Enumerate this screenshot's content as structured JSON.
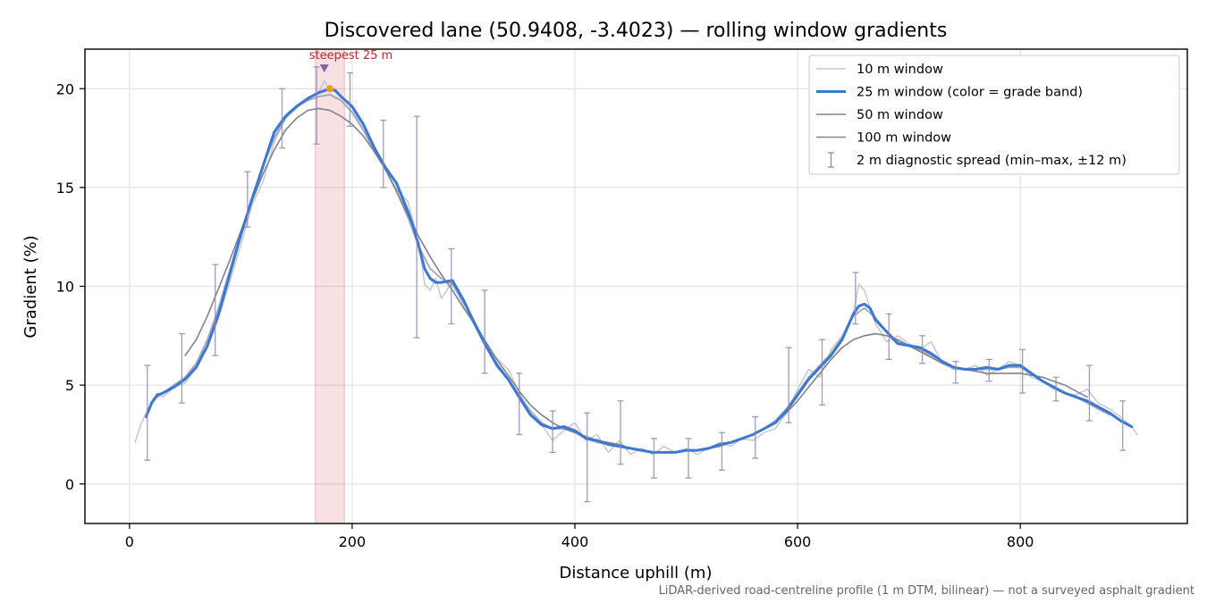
{
  "chart_data": {
    "type": "line",
    "title": "Discovered lane (50.9408, -3.4023) — rolling window gradients",
    "xlabel": "Distance uphill (m)",
    "ylabel": "Gradient (%)",
    "xlim": [
      -40,
      950
    ],
    "ylim": [
      -2,
      22
    ],
    "xticks": [
      0,
      200,
      400,
      600,
      800
    ],
    "yticks": [
      0,
      5,
      10,
      15,
      20
    ],
    "grid": true,
    "legend_position": "top-right",
    "footnote": "LiDAR-derived road-centreline profile (1 m DTM, bilinear) — not a surveyed asphalt gradient",
    "annotation": {
      "text": "steepest 25 m",
      "x": 175,
      "y": 21,
      "highlight_x_range": [
        167,
        193
      ],
      "peak_point": [
        180,
        20.0
      ]
    },
    "series": [
      {
        "name": "10 m window",
        "color": "#c4c8d0",
        "x": [
          5,
          10,
          15,
          20,
          25,
          30,
          40,
          50,
          60,
          70,
          80,
          90,
          100,
          110,
          120,
          130,
          140,
          150,
          160,
          170,
          175,
          180,
          185,
          190,
          200,
          210,
          220,
          230,
          240,
          250,
          260,
          265,
          270,
          275,
          280,
          290,
          300,
          310,
          320,
          340,
          360,
          370,
          380,
          390,
          400,
          410,
          420,
          430,
          440,
          450,
          460,
          470,
          480,
          490,
          500,
          510,
          520,
          530,
          540,
          550,
          560,
          570,
          580,
          590,
          600,
          610,
          620,
          630,
          640,
          650,
          655,
          660,
          665,
          670,
          680,
          690,
          700,
          710,
          720,
          730,
          740,
          750,
          760,
          770,
          780,
          790,
          800,
          810,
          820,
          830,
          840,
          850,
          860,
          870,
          880,
          890,
          900,
          905
        ],
        "values": [
          2.1,
          3.0,
          3.6,
          4.2,
          4.6,
          4.4,
          4.9,
          5.1,
          5.9,
          6.9,
          8.4,
          10.2,
          12.1,
          14.1,
          15.3,
          17.3,
          18.5,
          19.0,
          19.5,
          19.8,
          20.4,
          19.9,
          20.0,
          19.6,
          19.0,
          17.9,
          16.8,
          15.9,
          14.9,
          14.3,
          12.2,
          10.1,
          9.8,
          10.4,
          9.4,
          10.2,
          9.0,
          8.0,
          6.9,
          5.8,
          3.5,
          3.0,
          2.2,
          2.7,
          3.1,
          2.2,
          2.5,
          1.6,
          2.2,
          1.5,
          1.8,
          1.5,
          1.9,
          1.6,
          1.8,
          1.5,
          1.8,
          2.1,
          1.9,
          2.3,
          2.2,
          2.6,
          2.8,
          3.6,
          4.8,
          5.8,
          5.4,
          6.8,
          7.5,
          8.6,
          10.1,
          9.8,
          8.9,
          8.1,
          7.2,
          7.5,
          7.1,
          6.8,
          7.2,
          6.1,
          5.8,
          5.8,
          6.0,
          5.5,
          5.8,
          6.2,
          6.0,
          5.4,
          5.2,
          4.8,
          4.6,
          4.5,
          4.8,
          4.1,
          3.8,
          3.4,
          2.9,
          2.5
        ]
      },
      {
        "name": "25 m window (color = grade band)",
        "color": "#3a78d4",
        "x": [
          15,
          20,
          25,
          30,
          40,
          50,
          60,
          70,
          80,
          90,
          100,
          110,
          120,
          130,
          140,
          150,
          160,
          170,
          175,
          180,
          185,
          190,
          200,
          210,
          220,
          230,
          240,
          250,
          255,
          260,
          265,
          270,
          275,
          280,
          290,
          300,
          310,
          320,
          330,
          340,
          350,
          360,
          370,
          380,
          390,
          400,
          410,
          420,
          430,
          440,
          450,
          460,
          470,
          480,
          490,
          500,
          510,
          520,
          530,
          540,
          550,
          560,
          570,
          580,
          590,
          600,
          610,
          620,
          630,
          640,
          650,
          655,
          660,
          665,
          670,
          680,
          690,
          700,
          710,
          720,
          730,
          740,
          750,
          760,
          770,
          780,
          790,
          800,
          810,
          820,
          830,
          840,
          850,
          860,
          870,
          880,
          890,
          900
        ],
        "values": [
          3.4,
          4.1,
          4.5,
          4.6,
          4.9,
          5.3,
          5.9,
          7.0,
          8.6,
          10.6,
          12.6,
          14.4,
          16.1,
          17.8,
          18.6,
          19.1,
          19.5,
          19.8,
          19.9,
          20.0,
          19.9,
          19.6,
          19.1,
          18.2,
          17.0,
          16.0,
          15.2,
          13.8,
          13.0,
          12.0,
          10.9,
          10.4,
          10.2,
          10.2,
          10.3,
          9.3,
          8.1,
          7.0,
          6.0,
          5.3,
          4.4,
          3.5,
          3.0,
          2.8,
          2.9,
          2.7,
          2.3,
          2.2,
          2.0,
          1.9,
          1.8,
          1.7,
          1.6,
          1.6,
          1.6,
          1.7,
          1.7,
          1.8,
          2.0,
          2.1,
          2.3,
          2.5,
          2.8,
          3.1,
          3.7,
          4.5,
          5.3,
          5.9,
          6.5,
          7.3,
          8.6,
          9.0,
          9.1,
          8.9,
          8.3,
          7.7,
          7.1,
          7.0,
          6.9,
          6.6,
          6.2,
          5.9,
          5.8,
          5.8,
          5.9,
          5.8,
          6.0,
          6.0,
          5.6,
          5.2,
          4.9,
          4.6,
          4.4,
          4.2,
          3.9,
          3.6,
          3.2,
          2.9
        ]
      },
      {
        "name": "50 m window",
        "color": "#9aa4b4",
        "x": [
          25,
          30,
          40,
          50,
          60,
          70,
          80,
          90,
          100,
          110,
          120,
          130,
          140,
          150,
          160,
          170,
          180,
          190,
          200,
          210,
          220,
          230,
          240,
          250,
          260,
          270,
          280,
          290,
          300,
          310,
          320,
          330,
          340,
          350,
          360,
          370,
          380,
          390,
          400,
          410,
          420,
          430,
          440,
          450,
          460,
          470,
          480,
          490,
          500,
          510,
          520,
          530,
          540,
          550,
          560,
          570,
          580,
          590,
          600,
          610,
          620,
          630,
          640,
          650,
          660,
          670,
          680,
          690,
          700,
          710,
          720,
          730,
          740,
          750,
          760,
          770,
          780,
          790,
          800,
          810,
          820,
          830,
          840,
          850,
          860,
          870,
          880
        ],
        "values": [
          4.4,
          4.6,
          5.0,
          5.4,
          6.1,
          7.3,
          8.9,
          10.8,
          12.7,
          14.5,
          16.1,
          17.5,
          18.5,
          19.1,
          19.4,
          19.6,
          19.7,
          19.4,
          18.8,
          17.9,
          16.9,
          15.9,
          14.8,
          13.5,
          12.0,
          10.9,
          10.4,
          10.1,
          9.2,
          8.2,
          7.1,
          6.1,
          5.3,
          4.5,
          3.7,
          3.1,
          2.8,
          2.8,
          2.6,
          2.3,
          2.1,
          2.0,
          1.9,
          1.8,
          1.7,
          1.6,
          1.6,
          1.6,
          1.7,
          1.7,
          1.8,
          2.0,
          2.1,
          2.3,
          2.5,
          2.8,
          3.2,
          3.8,
          4.6,
          5.4,
          6.0,
          6.6,
          7.4,
          8.5,
          8.9,
          8.4,
          7.7,
          7.2,
          7.0,
          6.8,
          6.5,
          6.2,
          5.9,
          5.8,
          5.8,
          5.8,
          5.8,
          5.9,
          5.9,
          5.6,
          5.2,
          4.9,
          4.6,
          4.4,
          4.1,
          3.8,
          3.5
        ]
      },
      {
        "name": "100 m window",
        "color": "#7c8492",
        "x": [
          50,
          60,
          70,
          80,
          90,
          100,
          110,
          120,
          130,
          140,
          150,
          160,
          170,
          180,
          190,
          200,
          210,
          220,
          230,
          240,
          250,
          260,
          270,
          280,
          290,
          300,
          310,
          320,
          330,
          340,
          350,
          360,
          370,
          380,
          390,
          400,
          410,
          420,
          430,
          440,
          450,
          460,
          470,
          480,
          490,
          500,
          510,
          520,
          530,
          540,
          550,
          560,
          570,
          580,
          590,
          600,
          610,
          620,
          630,
          640,
          650,
          660,
          670,
          680,
          690,
          700,
          710,
          720,
          730,
          740,
          750,
          760,
          770,
          780,
          790,
          800,
          810,
          820,
          830,
          840,
          850,
          860
        ],
        "values": [
          6.5,
          7.3,
          8.5,
          9.9,
          11.3,
          12.8,
          14.3,
          15.7,
          16.9,
          17.9,
          18.5,
          18.9,
          19.0,
          18.9,
          18.6,
          18.2,
          17.6,
          16.8,
          15.9,
          14.8,
          13.6,
          12.5,
          11.5,
          10.6,
          9.8,
          8.9,
          8.1,
          7.2,
          6.3,
          5.5,
          4.7,
          4.0,
          3.5,
          3.1,
          2.8,
          2.6,
          2.4,
          2.2,
          2.1,
          2.0,
          1.8,
          1.7,
          1.6,
          1.6,
          1.6,
          1.7,
          1.7,
          1.8,
          1.9,
          2.1,
          2.3,
          2.5,
          2.8,
          3.1,
          3.6,
          4.2,
          4.9,
          5.6,
          6.3,
          6.9,
          7.3,
          7.5,
          7.6,
          7.5,
          7.3,
          7.0,
          6.7,
          6.4,
          6.1,
          5.9,
          5.8,
          5.7,
          5.6,
          5.6,
          5.6,
          5.6,
          5.5,
          5.4,
          5.2,
          5.0,
          4.7,
          4.4
        ]
      }
    ],
    "diagnostic_spread": {
      "name": "2 m diagnostic spread (min–max, ±12 m)",
      "color": "#9088b4",
      "x": [
        16,
        47,
        77,
        106,
        137,
        168,
        198,
        228,
        258,
        289,
        319,
        350,
        380,
        411,
        441,
        471,
        502,
        532,
        562,
        592,
        622,
        652,
        682,
        712,
        742,
        772,
        802,
        832,
        862,
        892
      ],
      "low": [
        1.2,
        4.1,
        6.5,
        13.0,
        17.0,
        17.2,
        18.1,
        15.0,
        7.4,
        8.1,
        5.6,
        2.5,
        1.6,
        -0.9,
        1.0,
        0.3,
        0.3,
        0.7,
        1.3,
        3.1,
        4.0,
        8.1,
        6.3,
        6.1,
        5.1,
        5.2,
        4.6,
        4.2,
        3.2,
        1.7
      ],
      "high": [
        6.0,
        7.6,
        11.1,
        15.8,
        20.0,
        21.1,
        20.8,
        18.4,
        18.6,
        11.9,
        9.8,
        5.6,
        3.7,
        3.6,
        4.2,
        2.3,
        2.3,
        2.6,
        3.4,
        6.9,
        7.3,
        10.7,
        8.6,
        7.5,
        6.2,
        6.3,
        6.8,
        5.4,
        6.0,
        4.2
      ]
    }
  }
}
